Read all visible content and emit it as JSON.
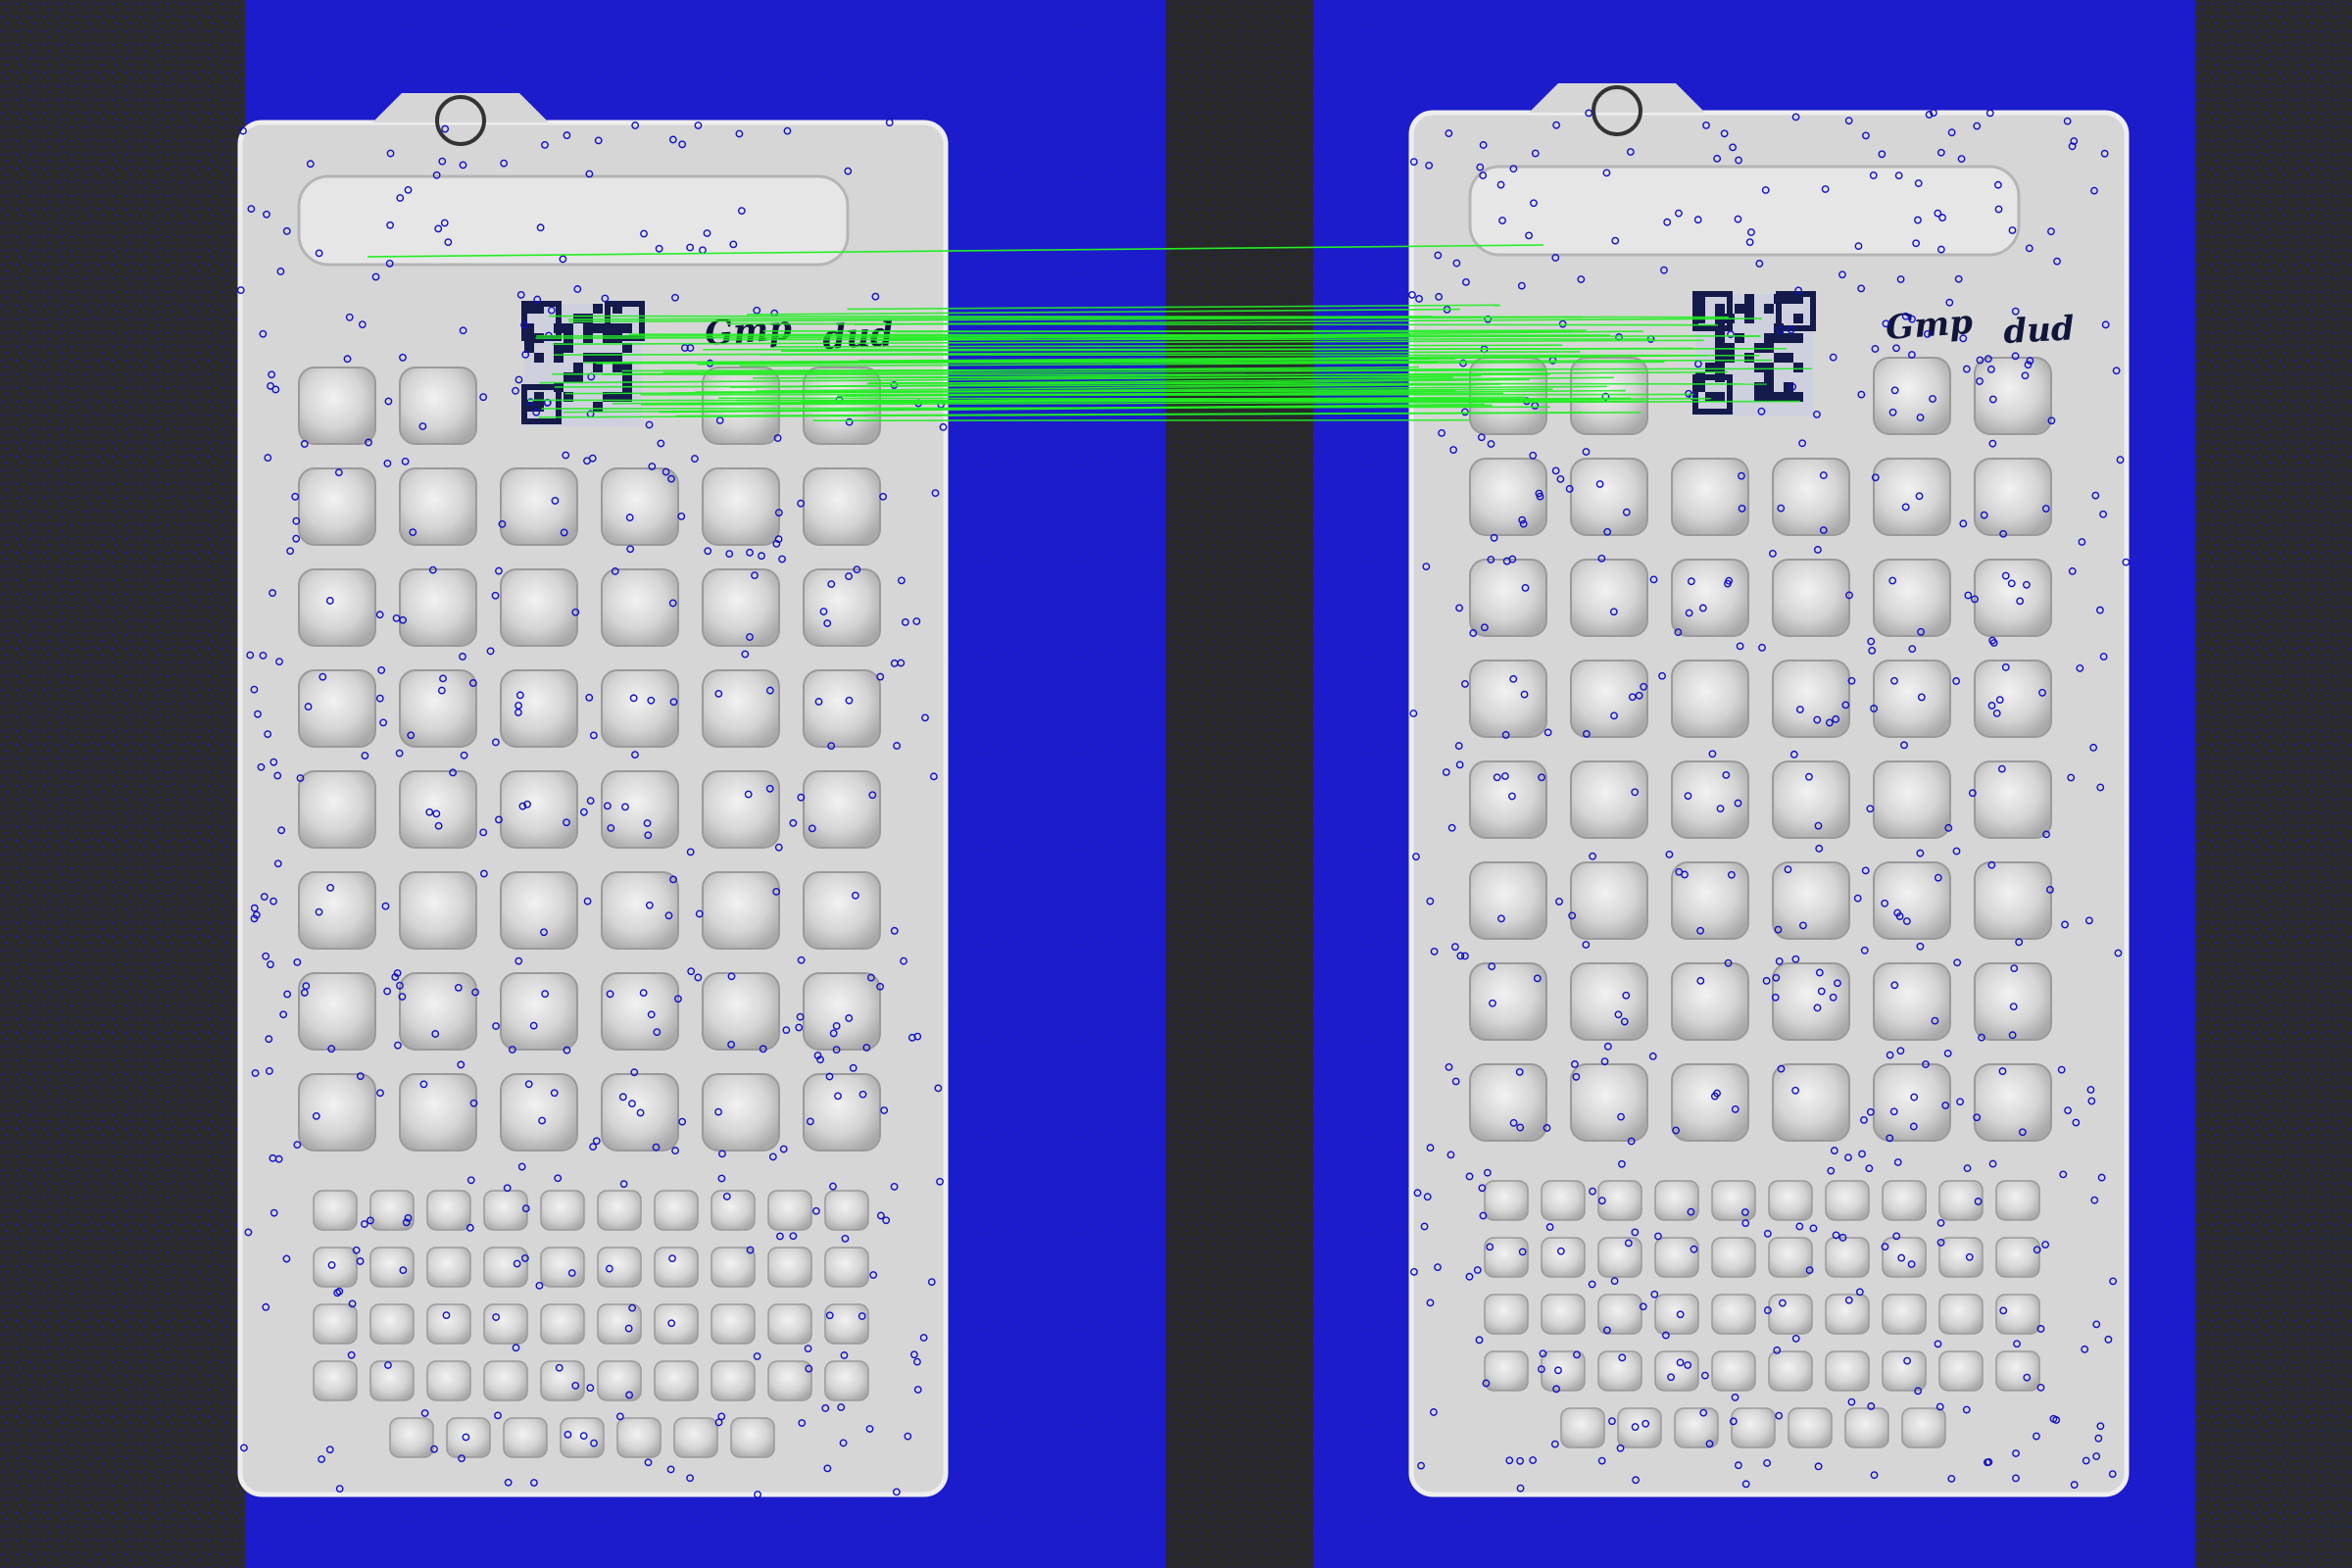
{
  "image": {
    "kind": "feature-matching visualization of two blister-pack card photographs",
    "background_color": "#2b2b2b",
    "overlay_color": "#1a1ae6",
    "keypoint_color": "#1010c8",
    "match_line_color": "#22ee22",
    "card_color": "#d9d9d9",
    "handwritten_text": [
      "Gmp",
      "dud"
    ]
  },
  "cards": [
    {
      "name": "left-card",
      "blister_rows_large": 8,
      "blister_cols_large": 6,
      "blister_rows_small": 5,
      "blister_cols_small": 10
    },
    {
      "name": "right-card",
      "blister_rows_large": 8,
      "blister_cols_large": 6,
      "blister_rows_small": 5,
      "blister_cols_small": 10
    }
  ],
  "matches": {
    "count_estimate": 60,
    "region": "qr-code-area"
  }
}
